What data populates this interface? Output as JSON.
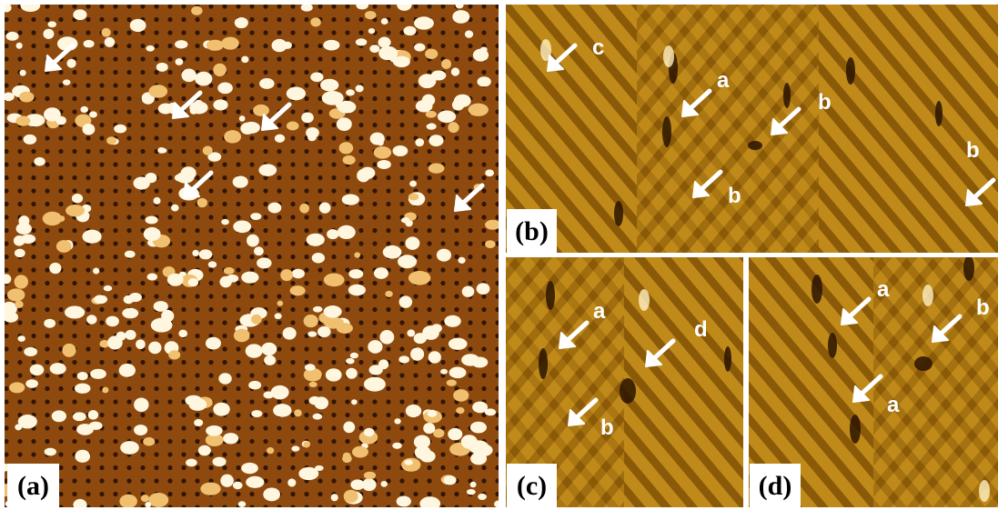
{
  "panels": [
    {
      "label": "(a)",
      "annotations": []
    },
    {
      "label": "(b)",
      "annotations": [
        "c",
        "a",
        "b",
        "b",
        "b"
      ]
    },
    {
      "label": "(c)",
      "annotations": [
        "a",
        "d",
        "b"
      ]
    },
    {
      "label": "(d)",
      "annotations": [
        "a",
        "b",
        "a"
      ]
    }
  ]
}
